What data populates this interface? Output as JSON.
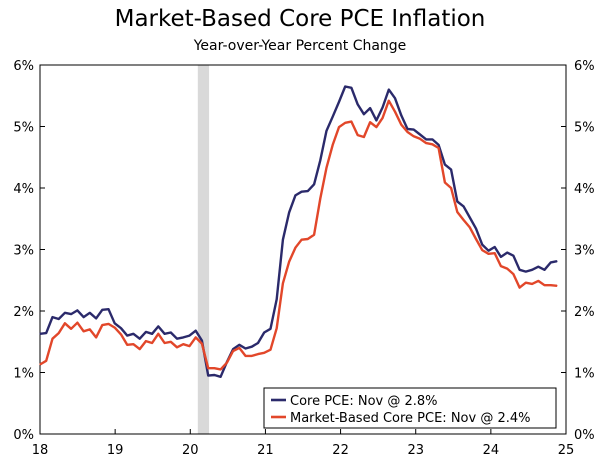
{
  "chart_data": {
    "type": "line",
    "title": "Market-Based Core PCE Inflation",
    "subtitle": "Year-over-Year Percent Change",
    "xlabel": "",
    "ylabel": "",
    "xlim": [
      18,
      25
    ],
    "ylim": [
      0,
      6
    ],
    "x_tick_labels": [
      "18",
      "19",
      "20",
      "21",
      "22",
      "23",
      "24",
      "25"
    ],
    "y_tick_labels": [
      "0%",
      "1%",
      "2%",
      "3%",
      "4%",
      "5%",
      "6%"
    ],
    "recession_shading": {
      "start": 20.1,
      "end": 20.25,
      "color": "#d9d9d9"
    },
    "series": [
      {
        "name": "Core PCE",
        "legend_label": "Core PCE: Nov @ 2.8%",
        "color": "#2b2a6b",
        "values": [
          1.63,
          1.64,
          1.9,
          1.87,
          1.97,
          1.95,
          2.01,
          1.9,
          1.97,
          1.88,
          2.02,
          2.03,
          1.8,
          1.72,
          1.6,
          1.63,
          1.55,
          1.66,
          1.63,
          1.75,
          1.63,
          1.65,
          1.55,
          1.57,
          1.6,
          1.68,
          1.52,
          0.95,
          0.96,
          0.93,
          1.17,
          1.38,
          1.45,
          1.39,
          1.42,
          1.48,
          1.65,
          1.71,
          2.19,
          3.16,
          3.6,
          3.88,
          3.94,
          3.95,
          4.06,
          4.45,
          4.93,
          5.16,
          5.4,
          5.65,
          5.63,
          5.36,
          5.2,
          5.3,
          5.1,
          5.31,
          5.6,
          5.46,
          5.18,
          4.96,
          4.95,
          4.87,
          4.79,
          4.79,
          4.7,
          4.38,
          4.3,
          3.78,
          3.7,
          3.52,
          3.34,
          3.08,
          2.98,
          3.04,
          2.88,
          2.95,
          2.9,
          2.67,
          2.64,
          2.67,
          2.72,
          2.67,
          2.79,
          2.81
        ]
      },
      {
        "name": "Market-Based Core PCE",
        "legend_label": "Market-Based Core PCE: Nov @ 2.4%",
        "color": "#e2472a",
        "values": [
          1.13,
          1.19,
          1.55,
          1.64,
          1.8,
          1.71,
          1.81,
          1.67,
          1.7,
          1.57,
          1.77,
          1.79,
          1.73,
          1.62,
          1.45,
          1.46,
          1.38,
          1.51,
          1.48,
          1.63,
          1.48,
          1.5,
          1.41,
          1.46,
          1.43,
          1.57,
          1.47,
          1.07,
          1.07,
          1.05,
          1.16,
          1.35,
          1.4,
          1.27,
          1.27,
          1.3,
          1.32,
          1.37,
          1.72,
          2.45,
          2.8,
          3.03,
          3.16,
          3.17,
          3.24,
          3.83,
          4.33,
          4.7,
          4.99,
          5.06,
          5.08,
          4.86,
          4.83,
          5.07,
          4.99,
          5.14,
          5.42,
          5.24,
          5.03,
          4.91,
          4.84,
          4.8,
          4.73,
          4.71,
          4.65,
          4.09,
          4.0,
          3.61,
          3.48,
          3.36,
          3.17,
          2.99,
          2.93,
          2.94,
          2.73,
          2.69,
          2.6,
          2.38,
          2.46,
          2.44,
          2.49,
          2.42,
          2.42,
          2.41
        ]
      }
    ]
  }
}
